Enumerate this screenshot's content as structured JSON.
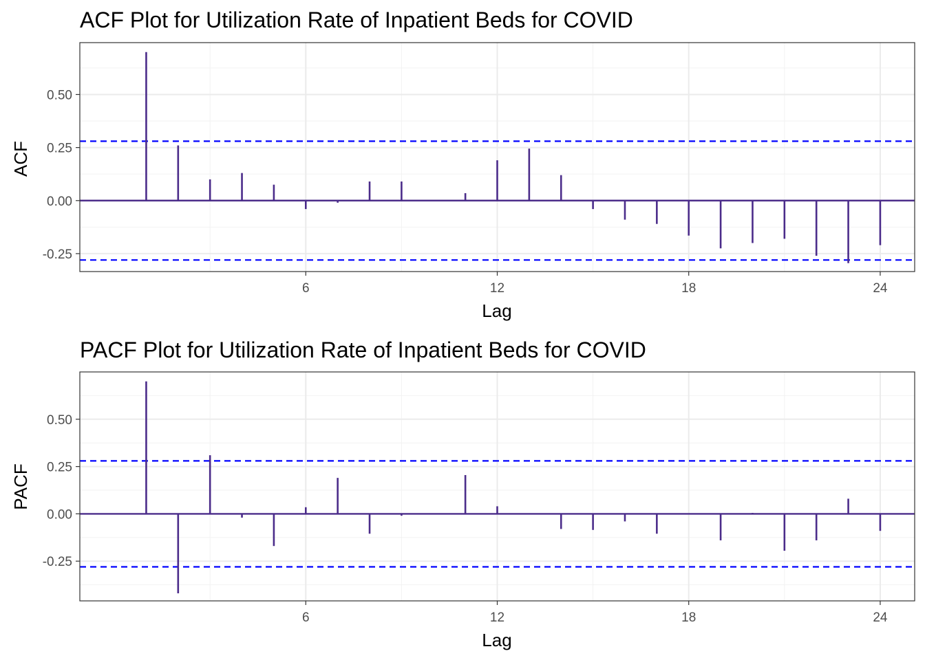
{
  "chart_data": [
    {
      "type": "bar",
      "title": "ACF Plot for Utilization Rate of Inpatient Beds for COVID",
      "xlabel": "Lag",
      "ylabel": "ACF",
      "xlim": [
        0.0,
        24.0
      ],
      "ylim": [
        -0.29,
        0.7
      ],
      "x_ticks": [
        6,
        12,
        18,
        24
      ],
      "y_ticks": [
        -0.25,
        0.0,
        0.25,
        0.5
      ],
      "y_tick_labels": [
        "-0.25",
        "0.00",
        "0.25",
        "0.50"
      ],
      "lags": [
        1,
        2,
        3,
        4,
        5,
        6,
        7,
        8,
        9,
        10,
        11,
        12,
        13,
        14,
        15,
        16,
        17,
        18,
        19,
        20,
        21,
        22,
        23,
        24
      ],
      "values": [
        0.7,
        0.26,
        0.1,
        0.13,
        0.075,
        -0.04,
        -0.01,
        0.09,
        0.09,
        0.0,
        0.035,
        0.19,
        0.245,
        0.12,
        -0.04,
        -0.09,
        -0.11,
        -0.165,
        -0.225,
        -0.2,
        -0.18,
        -0.26,
        -0.295,
        -0.21
      ],
      "ci_upper": 0.28,
      "ci_lower": -0.28,
      "grid": true,
      "bar_color": "#4b2c8a",
      "ci_color": "#0000ff"
    },
    {
      "type": "bar",
      "title": "PACF Plot for Utilization Rate of Inpatient Beds for COVID",
      "xlabel": "Lag",
      "ylabel": "PACF",
      "xlim": [
        0.0,
        24.0
      ],
      "ylim": [
        -0.41,
        0.7
      ],
      "x_ticks": [
        6,
        12,
        18,
        24
      ],
      "y_ticks": [
        -0.25,
        0.0,
        0.25,
        0.5
      ],
      "y_tick_labels": [
        "-0.25",
        "0.00",
        "0.25",
        "0.50"
      ],
      "lags": [
        1,
        2,
        3,
        4,
        5,
        6,
        7,
        8,
        9,
        10,
        11,
        12,
        13,
        14,
        15,
        16,
        17,
        18,
        19,
        20,
        21,
        22,
        23,
        24
      ],
      "values": [
        0.7,
        -0.42,
        0.31,
        -0.02,
        -0.17,
        0.035,
        0.19,
        -0.105,
        -0.01,
        0.0,
        0.205,
        0.04,
        0.0,
        -0.08,
        -0.085,
        -0.04,
        -0.105,
        0.0,
        -0.14,
        0.005,
        -0.195,
        -0.14,
        0.08,
        -0.09
      ],
      "ci_upper": 0.28,
      "ci_lower": -0.28,
      "grid": true,
      "bar_color": "#4b2c8a",
      "ci_color": "#0000ff"
    }
  ]
}
